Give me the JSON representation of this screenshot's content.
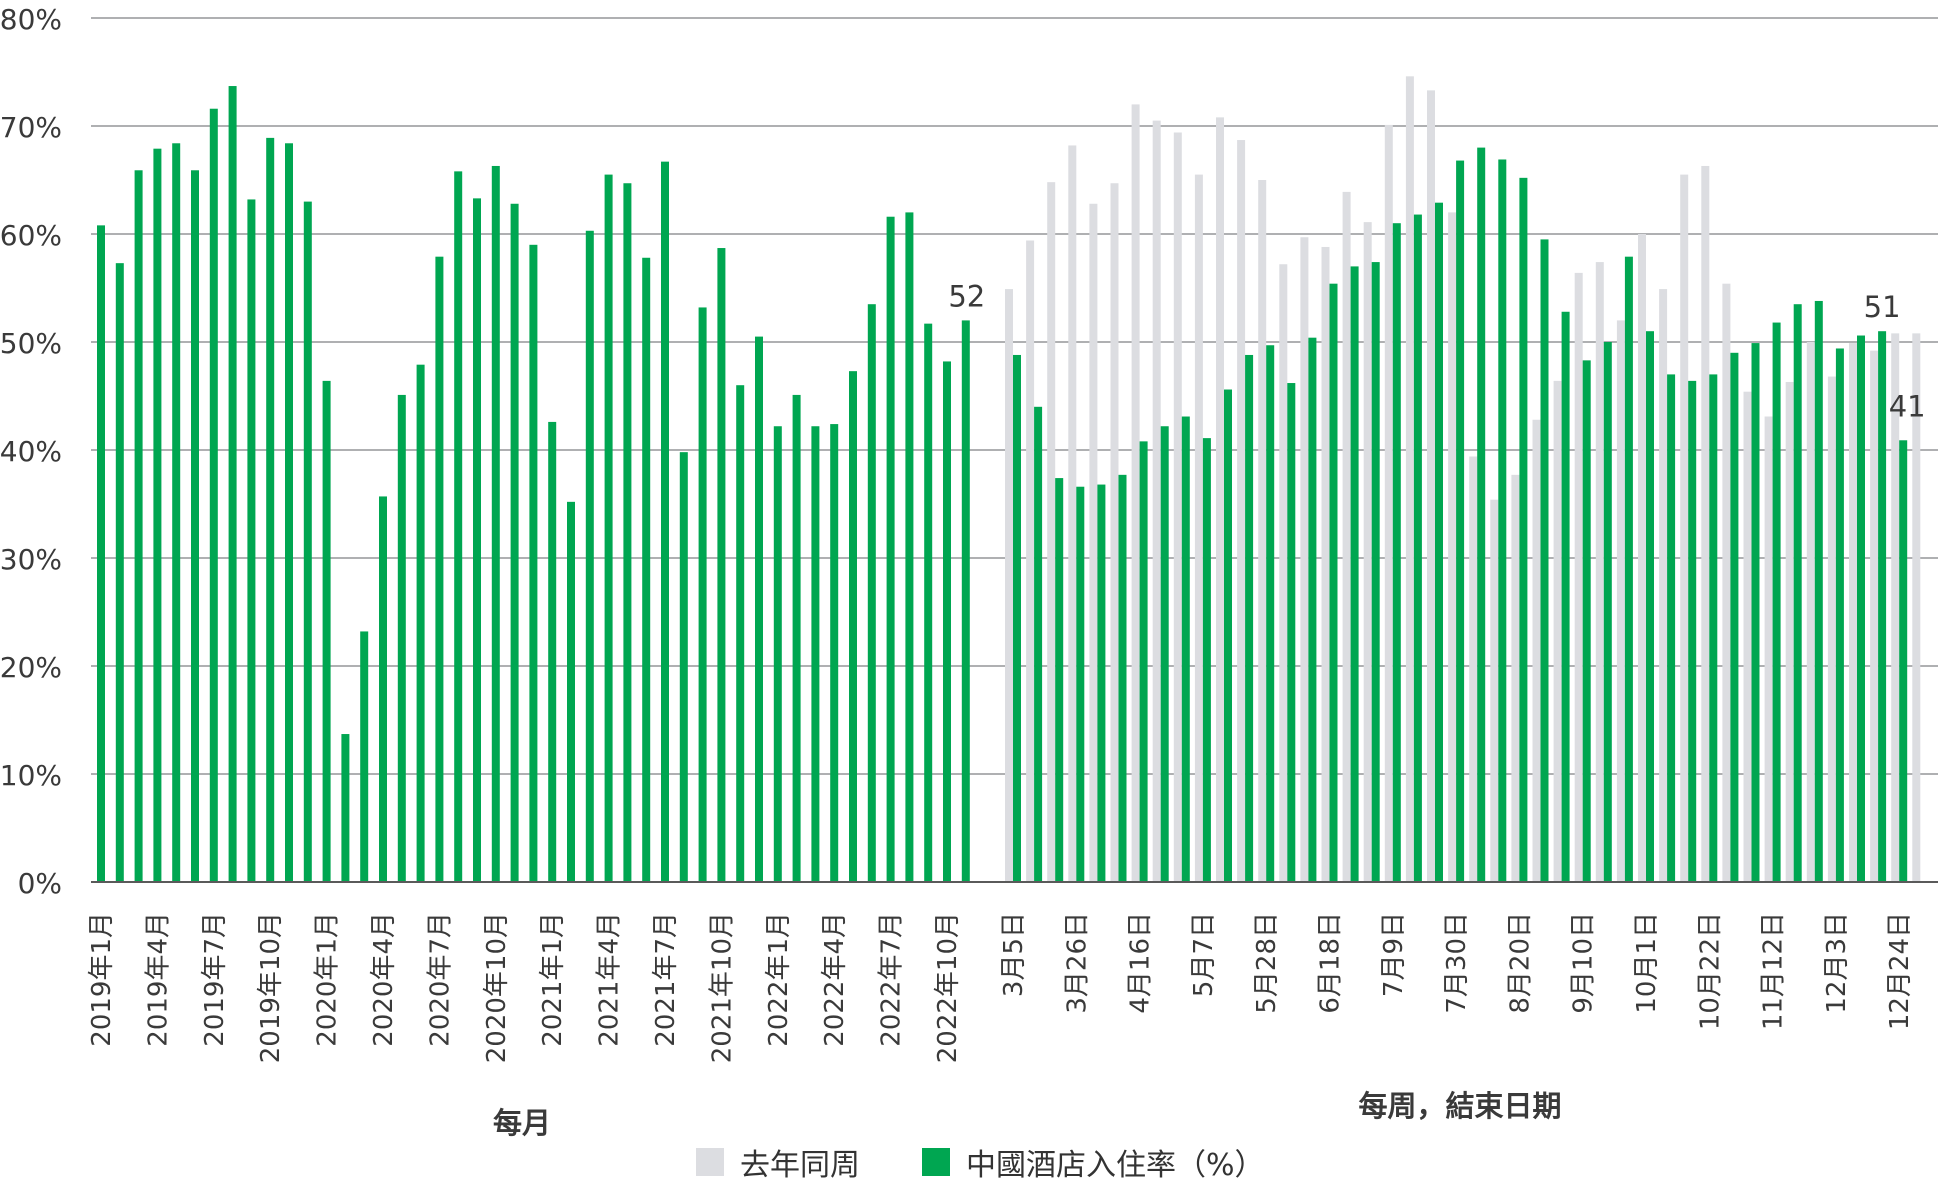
{
  "chart_data": {
    "type": "bar",
    "ylim": [
      0,
      80
    ],
    "ytick_labels": [
      "0%",
      "10%",
      "20%",
      "30%",
      "40%",
      "50%",
      "60%",
      "70%",
      "80%"
    ],
    "grid": true,
    "colors": {
      "current": "#00a651",
      "prior": "#dcdde1",
      "grid": "#7f8184",
      "axis": "#5a5a5a"
    },
    "monthly": {
      "xlabel": "每月",
      "categories": [
        "2019年1月",
        "2019年2月",
        "2019年3月",
        "2019年4月",
        "2019年5月",
        "2019年6月",
        "2019年7月",
        "2019年8月",
        "2019年9月",
        "2019年10月",
        "2019年11月",
        "2019年12月",
        "2020年1月",
        "2020年2月",
        "2020年3月",
        "2020年4月",
        "2020年5月",
        "2020年6月",
        "2020年7月",
        "2020年8月",
        "2020年9月",
        "2020年10月",
        "2020年11月",
        "2020年12月",
        "2021年1月",
        "2021年2月",
        "2021年3月",
        "2021年4月",
        "2021年5月",
        "2021年6月",
        "2021年7月",
        "2021年8月",
        "2021年9月",
        "2021年10月",
        "2021年11月",
        "2021年12月",
        "2022年1月",
        "2022年2月",
        "2022年3月",
        "2022年4月",
        "2022年5月",
        "2022年6月",
        "2022年7月",
        "2022年8月",
        "2022年9月",
        "2022年10月",
        "2022年11月",
        "2022年12月"
      ],
      "tick_labels": [
        "2019年1月",
        "2019年4月",
        "2019年7月",
        "2019年10月",
        "2020年1月",
        "2020年4月",
        "2020年7月",
        "2020年10月",
        "2021年1月",
        "2021年4月",
        "2021年7月",
        "2021年10月",
        "2022年1月",
        "2022年4月",
        "2022年7月",
        "2022年10月"
      ],
      "series": [
        {
          "name": "中國酒店入住率（%）",
          "values": [
            60.8,
            57.3,
            65.9,
            67.9,
            68.4,
            65.9,
            71.6,
            73.7,
            63.2,
            68.9,
            68.4,
            63.0,
            46.4,
            13.7,
            23.2,
            35.7,
            45.1,
            47.9,
            57.9,
            65.8,
            63.3,
            66.3,
            62.8,
            59.0,
            42.6,
            35.2,
            60.3,
            65.5,
            64.7,
            57.8,
            66.7,
            39.8,
            53.2,
            58.7,
            46.0,
            50.5,
            42.2,
            45.1,
            42.2,
            42.4,
            47.3,
            53.5,
            61.6,
            62.0,
            51.7,
            48.2,
            52.0
          ]
        }
      ],
      "annotations": [
        {
          "index": 46,
          "label": "52"
        }
      ]
    },
    "weekly": {
      "xlabel": "每周，結束日期",
      "categories": [
        "3月5日",
        "3月12日",
        "3月19日",
        "3月26日",
        "4月2日",
        "4月9日",
        "4月16日",
        "4月23日",
        "4月30日",
        "5月7日",
        "5月14日",
        "5月21日",
        "5月28日",
        "6月4日",
        "6月11日",
        "6月18日",
        "6月25日",
        "7月2日",
        "7月9日",
        "7月16日",
        "7月23日",
        "7月30日",
        "8月6日",
        "8月13日",
        "8月20日",
        "8月27日",
        "9月3日",
        "9月10日",
        "9月17日",
        "9月24日",
        "10月1日",
        "10月8日",
        "10月15日",
        "10月22日",
        "10月29日",
        "11月5日",
        "11月12日",
        "11月19日",
        "11月26日",
        "12月3日",
        "12月10日",
        "12月17日",
        "12月24日",
        "12月31日"
      ],
      "tick_labels": [
        "3月5日",
        "3月26日",
        "4月16日",
        "5月7日",
        "5月28日",
        "6月18日",
        "7月9日",
        "7月30日",
        "8月20日",
        "9月10日",
        "10月1日",
        "10月22日",
        "11月12日",
        "12月3日",
        "12月24日"
      ],
      "series": [
        {
          "name": "去年同周",
          "values": [
            54.9,
            59.4,
            64.8,
            68.2,
            62.8,
            64.7,
            72.0,
            70.5,
            69.4,
            65.5,
            70.8,
            68.7,
            65.0,
            57.2,
            59.7,
            58.8,
            63.9,
            61.1,
            70.1,
            74.6,
            73.3,
            62.0,
            39.4,
            35.4,
            37.7,
            42.8,
            46.4,
            56.4,
            57.4,
            52.0,
            60.0,
            54.9,
            65.5,
            66.3,
            55.4,
            45.4,
            43.1,
            46.3,
            50.0,
            46.8,
            49.9,
            49.2,
            50.8,
            50.8
          ]
        },
        {
          "name": "中國酒店入住率（%）",
          "values": [
            48.8,
            44.0,
            37.4,
            36.6,
            36.8,
            37.7,
            40.8,
            42.2,
            43.1,
            41.1,
            45.6,
            48.8,
            49.7,
            46.2,
            50.4,
            55.4,
            57.0,
            57.4,
            61.0,
            61.8,
            62.9,
            66.8,
            68.0,
            66.9,
            65.2,
            59.5,
            52.8,
            48.3,
            50.0,
            57.9,
            51.0,
            47.0,
            46.4,
            47.0,
            49.0,
            49.9,
            51.8,
            53.5,
            53.8,
            49.4,
            50.6,
            51.0,
            40.9,
            null
          ]
        }
      ],
      "annotations": [
        {
          "index": 41,
          "series": 1,
          "label": "51"
        },
        {
          "index": 42,
          "series": 1,
          "label": "41"
        }
      ]
    },
    "legend": [
      {
        "label": "去年同周",
        "color": "#dcdde1"
      },
      {
        "label": "中國酒店入住率（%）",
        "color": "#00a651"
      }
    ]
  }
}
